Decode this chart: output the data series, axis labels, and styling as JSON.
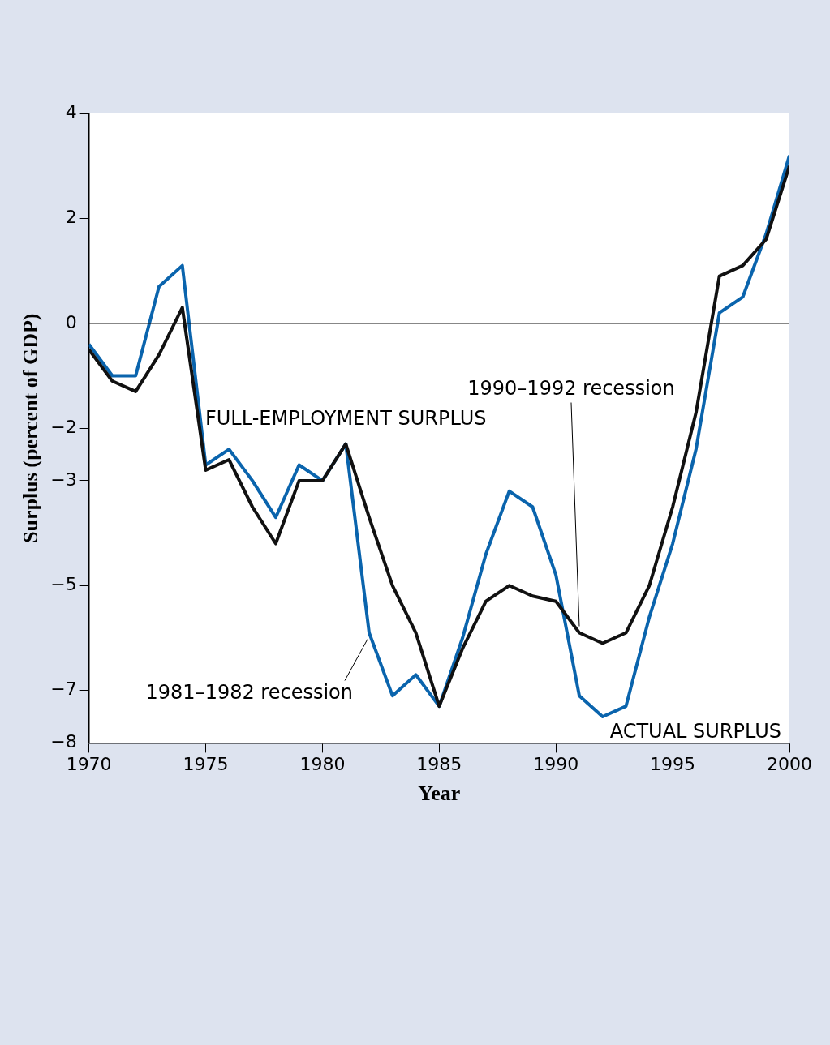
{
  "chart_data": {
    "type": "line",
    "xlabel": "Year",
    "ylabel": "Surplus (percent of GDP)",
    "x": [
      1970,
      1971,
      1972,
      1973,
      1974,
      1975,
      1976,
      1977,
      1978,
      1979,
      1980,
      1981,
      1982,
      1983,
      1984,
      1985,
      1986,
      1987,
      1988,
      1989,
      1990,
      1991,
      1992,
      1993,
      1994,
      1995,
      1996,
      1997,
      1998,
      1999,
      2000
    ],
    "series": [
      {
        "name": "FULL-EMPLOYMENT SURPLUS",
        "color": "#111111",
        "values": [
          -0.5,
          -1.1,
          -1.3,
          -0.6,
          0.3,
          -2.8,
          -2.6,
          -3.5,
          -4.2,
          -3.0,
          -3.0,
          -2.3,
          -3.7,
          -5.0,
          -5.9,
          -7.3,
          -6.2,
          -5.3,
          -5.0,
          -5.2,
          -5.3,
          -5.9,
          -6.1,
          -5.9,
          -5.0,
          -3.5,
          -1.7,
          0.9,
          1.1,
          1.6,
          3.0
        ]
      },
      {
        "name": "ACTUAL SURPLUS",
        "color": "#0a64ad",
        "values": [
          -0.4,
          -1.0,
          -1.0,
          0.7,
          1.1,
          -2.7,
          -2.4,
          -3.0,
          -3.7,
          -2.7,
          -3.0,
          -2.3,
          -5.9,
          -7.1,
          -6.7,
          -7.3,
          -6.0,
          -4.4,
          -3.2,
          -3.5,
          -4.8,
          -7.1,
          -7.5,
          -7.3,
          -5.6,
          -4.2,
          -2.4,
          0.2,
          0.5,
          1.7,
          3.2
        ]
      }
    ],
    "xlim": [
      1970,
      2000
    ],
    "xticks": [
      1970,
      1975,
      1980,
      1985,
      1990,
      1995,
      2000
    ],
    "ylim": [
      -8,
      4
    ],
    "yticks": [
      4,
      2,
      0,
      -2,
      -3,
      -5,
      -7,
      -8
    ],
    "ref_lines": [
      {
        "axis": "y",
        "value": 0,
        "color": "#111111"
      }
    ],
    "annotations": [
      {
        "text": "1990–1992 recession",
        "x": 1991,
        "y": -5.9
      },
      {
        "text": "1981–1982 recession",
        "x": 1982,
        "y": -5.9
      }
    ],
    "grid": false,
    "legend": false,
    "marker": "none",
    "line_style": "solid"
  }
}
